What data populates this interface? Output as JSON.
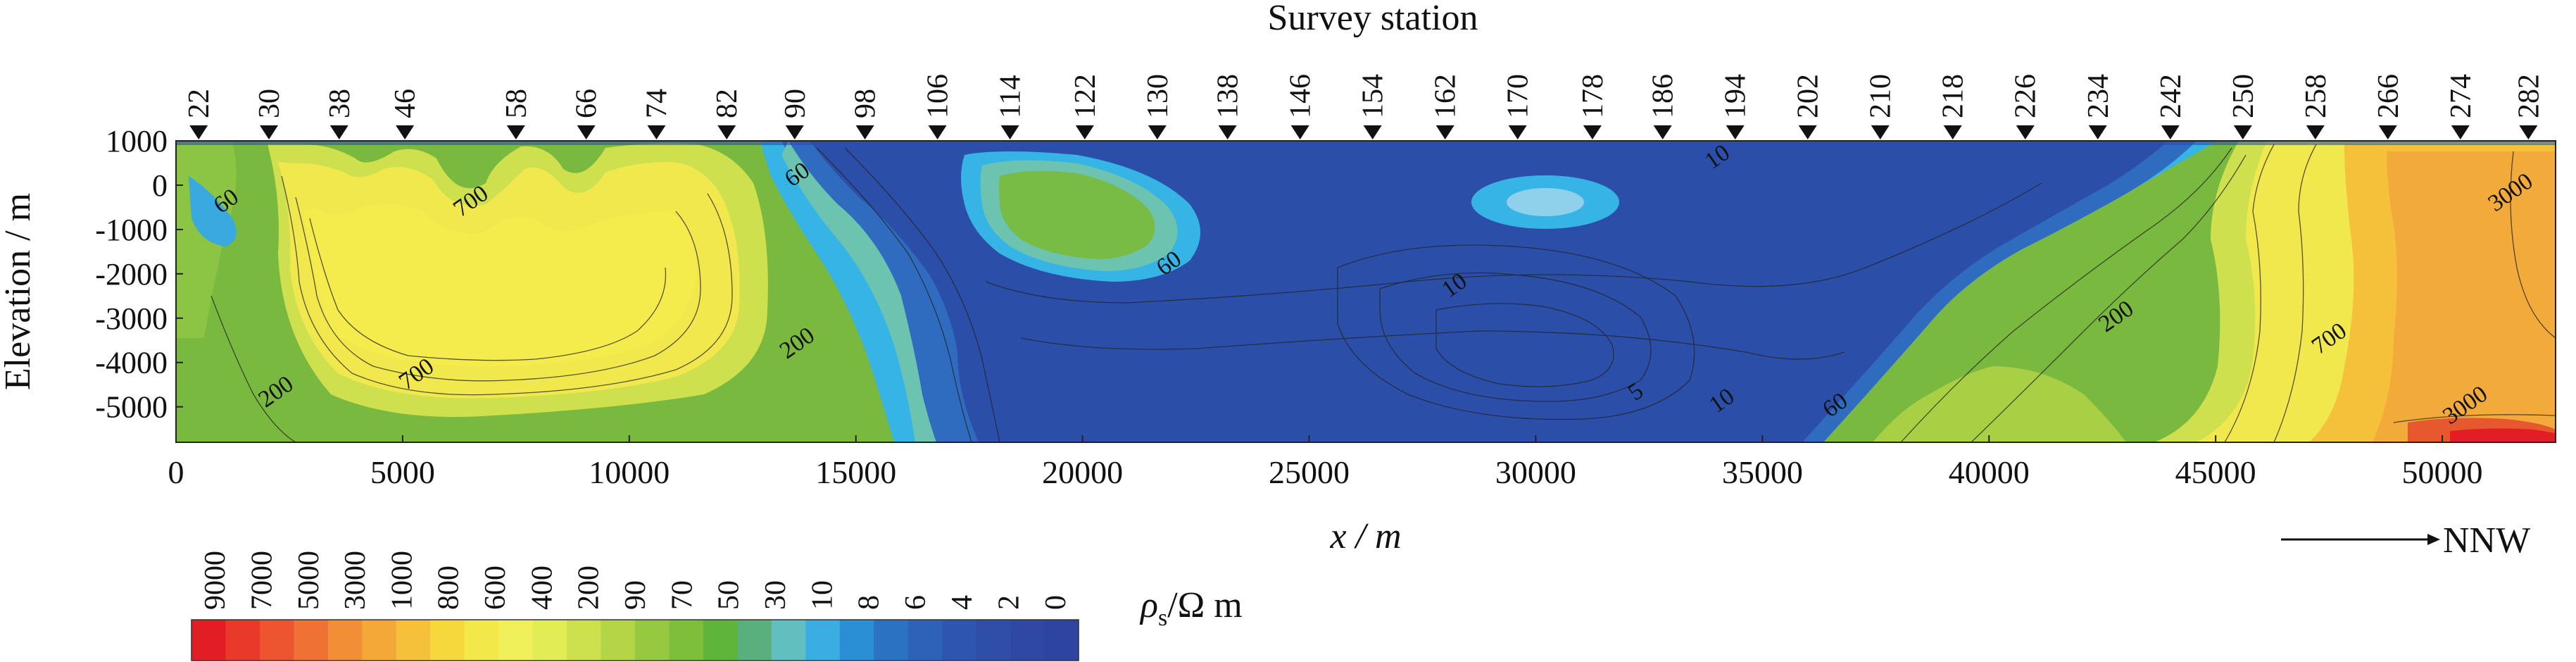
{
  "chart_data": {
    "type": "heatmap",
    "title": "Survey station",
    "xlabel": "x / m",
    "ylabel": "Elevation / m",
    "xlim": [
      0,
      52500
    ],
    "ylim": [
      -5800,
      1000
    ],
    "x_ticks": [
      0,
      5000,
      10000,
      15000,
      20000,
      25000,
      30000,
      35000,
      40000,
      45000,
      50000
    ],
    "x_tick_labels": [
      "0",
      "5000",
      "10000",
      "15000",
      "20000",
      "25000",
      "30000",
      "35000",
      "40000",
      "45000",
      "50000"
    ],
    "y_ticks": [
      1000,
      0,
      -1000,
      -2000,
      -3000,
      -4000,
      -5000
    ],
    "y_tick_labels": [
      "1000",
      "0",
      "-1000",
      "-2000",
      "-3000",
      "-4000",
      "-5000"
    ],
    "stations": [
      {
        "label": "22",
        "x": 500
      },
      {
        "label": "30",
        "x": 2050
      },
      {
        "label": "38",
        "x": 3600
      },
      {
        "label": "46",
        "x": 5050
      },
      {
        "label": "58",
        "x": 7500
      },
      {
        "label": "66",
        "x": 9050
      },
      {
        "label": "74",
        "x": 10600
      },
      {
        "label": "82",
        "x": 12150
      },
      {
        "label": "90",
        "x": 13650
      },
      {
        "label": "98",
        "x": 15200
      },
      {
        "label": "106",
        "x": 16800
      },
      {
        "label": "114",
        "x": 18400
      },
      {
        "label": "122",
        "x": 20050
      },
      {
        "label": "130",
        "x": 21650
      },
      {
        "label": "138",
        "x": 23200
      },
      {
        "label": "146",
        "x": 24800
      },
      {
        "label": "154",
        "x": 26400
      },
      {
        "label": "162",
        "x": 28000
      },
      {
        "label": "170",
        "x": 29600
      },
      {
        "label": "178",
        "x": 31250
      },
      {
        "label": "186",
        "x": 32800
      },
      {
        "label": "194",
        "x": 34400
      },
      {
        "label": "202",
        "x": 36000
      },
      {
        "label": "210",
        "x": 37600
      },
      {
        "label": "218",
        "x": 39200
      },
      {
        "label": "226",
        "x": 40800
      },
      {
        "label": "234",
        "x": 42400
      },
      {
        "label": "242",
        "x": 44000
      },
      {
        "label": "250",
        "x": 45600
      },
      {
        "label": "258",
        "x": 47200
      },
      {
        "label": "266",
        "x": 48800
      },
      {
        "label": "274",
        "x": 50400
      },
      {
        "label": "282",
        "x": 51900
      }
    ],
    "contour_labels": [
      {
        "text": "60",
        "x": 1200,
        "y": -500
      },
      {
        "text": "700",
        "x": 6600,
        "y": -500
      },
      {
        "text": "60",
        "x": 13800,
        "y": 100
      },
      {
        "text": "60",
        "x": 22000,
        "y": -1900
      },
      {
        "text": "10",
        "x": 34100,
        "y": 500
      },
      {
        "text": "10",
        "x": 28300,
        "y": -2400
      },
      {
        "text": "200",
        "x": 13800,
        "y": -3700
      },
      {
        "text": "700",
        "x": 5400,
        "y": -4400
      },
      {
        "text": "200",
        "x": 2300,
        "y": -4800
      },
      {
        "text": "5",
        "x": 32300,
        "y": -4800
      },
      {
        "text": "10",
        "x": 34200,
        "y": -5000
      },
      {
        "text": "60",
        "x": 36700,
        "y": -5100
      },
      {
        "text": "200",
        "x": 42900,
        "y": -3100
      },
      {
        "text": "700",
        "x": 47600,
        "y": -3600
      },
      {
        "text": "3000",
        "x": 51600,
        "y": -300
      },
      {
        "text": "3000",
        "x": 50600,
        "y": -5100
      }
    ],
    "colorbar": {
      "label": "ρs/Ω m",
      "label_symbol": "ρ",
      "label_sub": "s",
      "label_rest": "/Ω m",
      "ticks": [
        "9000",
        "7000",
        "5000",
        "3000",
        "1000",
        "800",
        "600",
        "400",
        "200",
        "90",
        "70",
        "50",
        "30",
        "10",
        "8",
        "6",
        "4",
        "2",
        "0"
      ],
      "colors": [
        "#e31d24",
        "#e8392a",
        "#ec5530",
        "#ef7134",
        "#f28f36",
        "#f4a838",
        "#f6c13a",
        "#f7d83c",
        "#f3e84a",
        "#eff05a",
        "#e2ec55",
        "#cce14d",
        "#b3d546",
        "#96c93f",
        "#7dbe3b",
        "#5fb43a",
        "#5ab07d",
        "#62bfc0",
        "#3aaee3",
        "#2a8fd4",
        "#2b73c2",
        "#2d62b8",
        "#2e56b0",
        "#2e4ea8",
        "#2e48a4",
        "#2d44a0"
      ]
    },
    "direction_label": "NNW",
    "colors": {
      "deep_blue": "#2b4fa9",
      "blue": "#2f6cc0",
      "cyan": "#36b4e6",
      "teal": "#6cc3b0",
      "green": "#7bbd3f",
      "light_green": "#a9cf45",
      "yellow": "#f4eb4f",
      "orange": "#f1a93a",
      "red": "#e4432c"
    }
  }
}
